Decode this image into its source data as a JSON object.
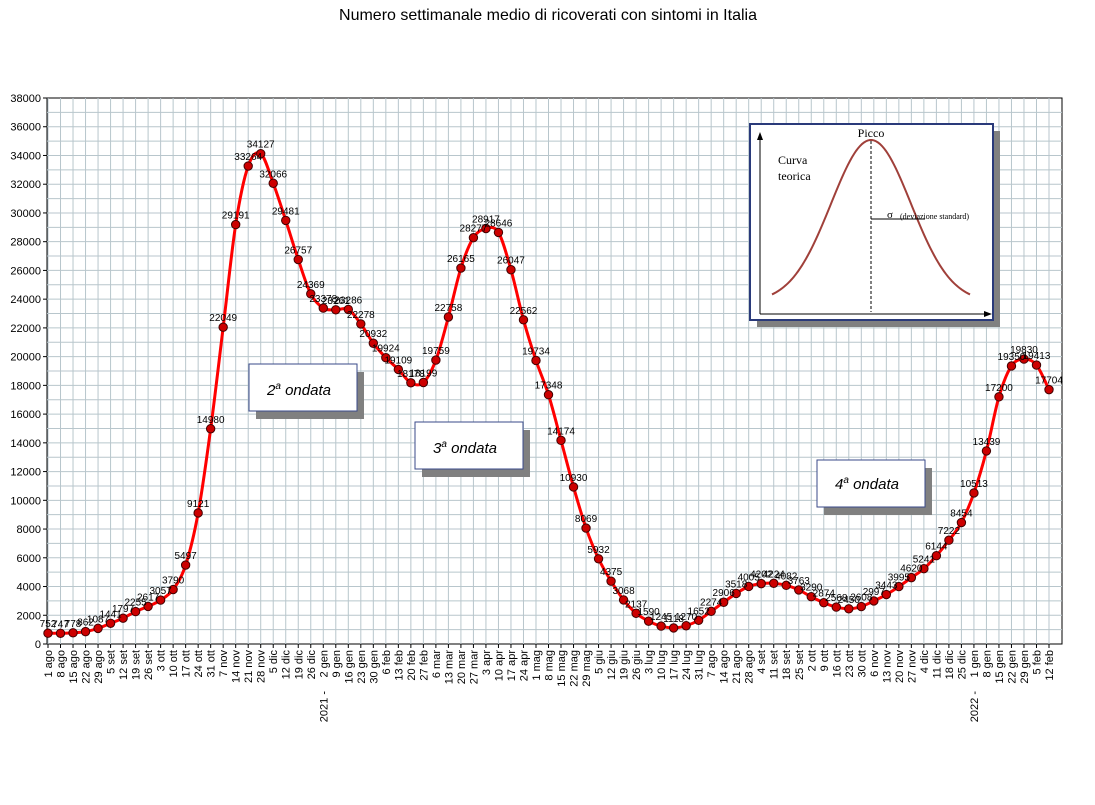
{
  "chart_data": {
    "type": "line",
    "title": "Numero settimanale medio di ricoverati con sintomi in Italia",
    "xlabel": "",
    "ylabel": "",
    "ylim": [
      0,
      38000
    ],
    "yticks": [
      0,
      2000,
      4000,
      6000,
      8000,
      10000,
      12000,
      14000,
      16000,
      18000,
      20000,
      22000,
      24000,
      26000,
      28000,
      30000,
      32000,
      34000,
      36000,
      38000
    ],
    "grid": true,
    "year_labels": [
      {
        "label": "2021 -",
        "index": 22
      },
      {
        "label": "2022 -",
        "index": 74
      }
    ],
    "x": [
      "1 ago",
      "8 ago",
      "15 ago",
      "22 ago",
      "29 ago",
      "5 set",
      "12 set",
      "19 set",
      "26 set",
      "3 ott",
      "10 ott",
      "17 ott",
      "24 ott",
      "31 ott",
      "7 nov",
      "14 nov",
      "21 nov",
      "28 nov",
      "5 dic",
      "12 dic",
      "19 dic",
      "26 dic",
      "2 gen",
      "9 gen",
      "16 gen",
      "23 gen",
      "30 gen",
      "6 feb",
      "13 feb",
      "20 feb",
      "27 feb",
      "6 mar",
      "13 mar",
      "20 mar",
      "27 mar",
      "3 apr",
      "10 apr",
      "17 apr",
      "24 apr",
      "1 mag",
      "8 mag",
      "15 mag",
      "22 mag",
      "29 mag",
      "5 giu",
      "12 giu",
      "19 giu",
      "26 giu",
      "3 lug",
      "10 lug",
      "17 lug",
      "24 lug",
      "31 lug",
      "7 ago",
      "14 ago",
      "21 ago",
      "28 ago",
      "4 set",
      "11 set",
      "18 set",
      "25 set",
      "2 ott",
      "9 ott",
      "16 ott",
      "23 ott",
      "30 ott",
      "6 nov",
      "13 nov",
      "20 nov",
      "27 nov",
      "4 dic",
      "11 dic",
      "18 dic",
      "25 dic",
      "1 gen",
      "8 gen",
      "15 gen",
      "22 gen",
      "29 gen",
      "5 feb",
      "12 feb"
    ],
    "series": [
      {
        "name": "",
        "color": "#ff0000",
        "marker_color": "#cc0000",
        "values": [
          752,
          747,
          778,
          862,
          1087,
          1441,
          1797,
          2255,
          2617,
          3057,
          3790,
          5497,
          9121,
          14980,
          22049,
          29191,
          33264,
          34127,
          32066,
          29481,
          26757,
          24369,
          23378,
          23261,
          23286,
          22278,
          20932,
          19924,
          19109,
          18178,
          18199,
          19759,
          22758,
          26165,
          28277,
          28917,
          28646,
          26047,
          22562,
          19734,
          17348,
          14174,
          10930,
          8069,
          5932,
          4375,
          3068,
          2137,
          1590,
          1245,
          1118,
          1270,
          1652,
          2274,
          2906,
          3518,
          4005,
          4202,
          4224,
          4082,
          3763,
          3290,
          2874,
          2568,
          2450,
          2608,
          2997,
          3443,
          3995,
          4620,
          5241,
          6144,
          7222,
          8454,
          10513,
          13439,
          17200,
          19350,
          19830,
          19413,
          17704
        ],
        "labels": [
          "752",
          "747",
          "778",
          "862",
          "1087",
          "1441",
          "1797",
          "2255",
          "2617",
          "3057",
          "3790",
          "5497",
          "9121",
          "14980",
          "22049",
          "29191",
          "33264",
          "34127",
          "32066",
          "29481",
          "26757",
          "24369",
          "23378",
          "23261",
          "23286",
          "22278",
          "20932",
          "19924",
          "19109",
          "18178",
          "18199",
          "19759",
          "22758",
          "26165",
          "28277",
          "28917",
          "28646",
          "26047",
          "22562",
          "19734",
          "17348",
          "14174",
          "10930",
          "8069",
          "5932",
          "4375",
          "3068",
          "2137",
          "1590",
          "1245",
          "1118",
          "1270",
          "1652",
          "2274",
          "2906",
          "3518",
          "4005",
          "4202",
          "4224",
          "4082",
          "3763",
          "3290",
          "2874",
          "2568",
          "2450",
          "2608",
          "2997",
          "3443",
          "3995",
          "4620",
          "5241",
          "6144",
          "7222",
          "8454",
          "10513",
          "13439",
          "17200",
          "19350",
          "19830",
          "19413",
          "17704"
        ]
      }
    ],
    "annotations": [
      {
        "pre": "2",
        "sup": "a",
        "post": " ondata"
      },
      {
        "pre": "3",
        "sup": "a",
        "post": " ondata"
      },
      {
        "pre": "4",
        "sup": "a",
        "post": " ondata"
      }
    ],
    "inset": {
      "peak_label": "Picco",
      "curve_label_line1": "Curva",
      "curve_label_line2": "teorica",
      "sigma_symbol": "σ",
      "sigma_text": "(deviazione standard)",
      "peak_color": "#b03030",
      "curve_color": "#a0403a"
    }
  }
}
